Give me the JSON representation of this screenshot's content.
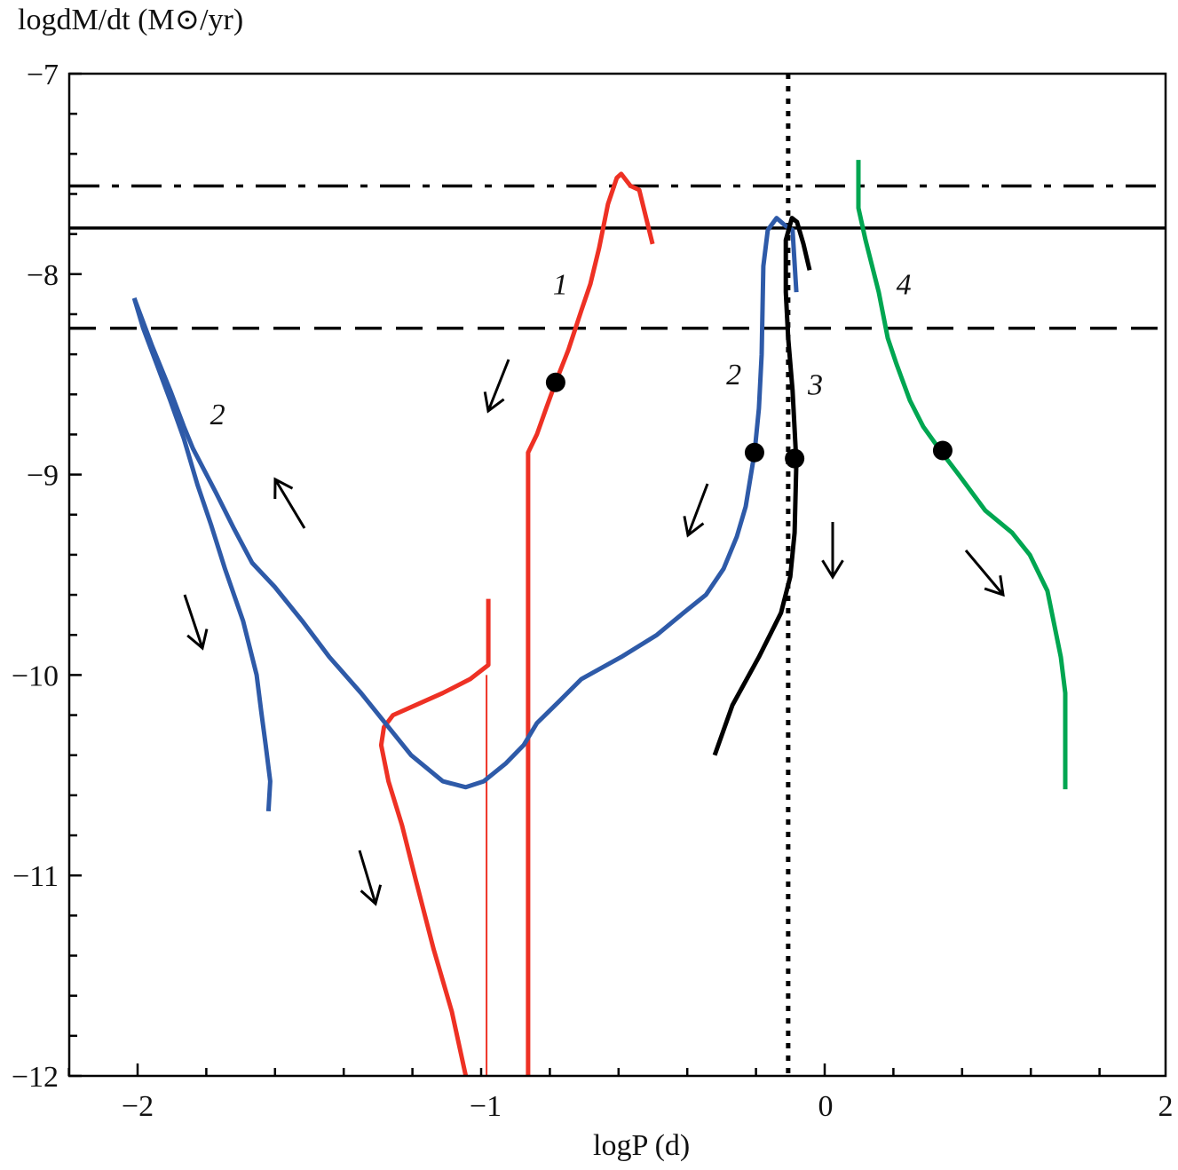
{
  "chart_data": {
    "type": "line",
    "title": "",
    "xlabel": "logP (d)",
    "ylabel": "logdM/dt (M⊙/yr)",
    "xlim": [
      -2.2,
      2
    ],
    "ylim": [
      -12,
      -7
    ],
    "x_axis_breakpoints": [
      -2.2,
      -2,
      -1,
      0,
      2
    ],
    "xticks": [
      {
        "value": -2,
        "label": "−2"
      },
      {
        "value": -1,
        "label": "−1"
      },
      {
        "value": 0,
        "label": "0"
      },
      {
        "value": 2,
        "label": "2"
      }
    ],
    "yticks": [
      {
        "value": -7,
        "label": "−7"
      },
      {
        "value": -8,
        "label": "−8"
      },
      {
        "value": -9,
        "label": "−9"
      },
      {
        "value": -10,
        "label": "−10"
      },
      {
        "value": -11,
        "label": "−11"
      },
      {
        "value": -12,
        "label": "−12"
      }
    ],
    "grid": false,
    "reference_lines": [
      {
        "orientation": "horizontal",
        "value": -7.56,
        "style": "dash-dot",
        "color": "#000000"
      },
      {
        "orientation": "horizontal",
        "value": -7.77,
        "style": "solid",
        "color": "#000000"
      },
      {
        "orientation": "horizontal",
        "value": -8.27,
        "style": "dashed",
        "color": "#000000"
      },
      {
        "orientation": "vertical",
        "value": -0.11,
        "style": "dotted",
        "color": "#000000"
      }
    ],
    "series": [
      {
        "label": "1",
        "color": "#ee3124",
        "segments": [
          [
            [
              -0.875,
              -12
            ],
            [
              -0.875,
              -8.89
            ],
            [
              -0.849,
              -8.8
            ],
            [
              -0.822,
              -8.67
            ],
            [
              -0.794,
              -8.54
            ],
            [
              -0.757,
              -8.38
            ],
            [
              -0.718,
              -8.18
            ],
            [
              -0.692,
              -8.05
            ],
            [
              -0.666,
              -7.87
            ],
            [
              -0.64,
              -7.65
            ],
            [
              -0.614,
              -7.52
            ],
            [
              -0.601,
              -7.5
            ],
            [
              -0.574,
              -7.56
            ],
            [
              -0.548,
              -7.58
            ],
            [
              -0.522,
              -7.76
            ],
            [
              -0.509,
              -7.85
            ]
          ],
          [
            [
              -0.992,
              -9.62
            ],
            [
              -0.992,
              -9.95
            ],
            [
              -1.044,
              -10.02
            ],
            [
              -1.123,
              -10.09
            ],
            [
              -1.201,
              -10.15
            ],
            [
              -1.266,
              -10.2
            ],
            [
              -1.292,
              -10.26
            ],
            [
              -1.3,
              -10.35
            ],
            [
              -1.279,
              -10.53
            ],
            [
              -1.24,
              -10.75
            ],
            [
              -1.201,
              -11.02
            ],
            [
              -1.149,
              -11.37
            ],
            [
              -1.097,
              -11.68
            ],
            [
              -1.057,
              -12.0
            ]
          ],
          [
            [
              -0.997,
              -12
            ],
            [
              -0.997,
              -10.0
            ]
          ]
        ],
        "marker": [
          -0.794,
          -8.54
        ],
        "label_at": [
          -0.78,
          -8.1
        ]
      },
      {
        "label": "2",
        "color": "#2e5aa8",
        "segments": [
          [
            [
              -2.01,
              -8.12
            ],
            [
              -1.984,
              -8.27
            ],
            [
              -1.945,
              -8.45
            ],
            [
              -1.906,
              -8.63
            ],
            [
              -1.867,
              -8.82
            ],
            [
              -1.828,
              -9.05
            ],
            [
              -1.789,
              -9.25
            ],
            [
              -1.749,
              -9.47
            ],
            [
              -1.697,
              -9.73
            ],
            [
              -1.658,
              -10.0
            ],
            [
              -1.645,
              -10.18
            ],
            [
              -1.632,
              -10.35
            ],
            [
              -1.619,
              -10.53
            ],
            [
              -1.624,
              -10.68
            ]
          ],
          [
            [
              -2.01,
              -8.12
            ],
            [
              -1.958,
              -8.36
            ],
            [
              -1.906,
              -8.58
            ],
            [
              -1.867,
              -8.76
            ],
            [
              -1.841,
              -8.87
            ],
            [
              -1.775,
              -9.09
            ],
            [
              -1.723,
              -9.27
            ],
            [
              -1.671,
              -9.44
            ],
            [
              -1.606,
              -9.56
            ],
            [
              -1.527,
              -9.73
            ],
            [
              -1.449,
              -9.91
            ],
            [
              -1.358,
              -10.09
            ],
            [
              -1.279,
              -10.26
            ],
            [
              -1.214,
              -10.4
            ],
            [
              -1.123,
              -10.53
            ],
            [
              -1.057,
              -10.56
            ],
            [
              -1.005,
              -10.53
            ],
            [
              -0.94,
              -10.44
            ],
            [
              -0.888,
              -10.35
            ],
            [
              -0.849,
              -10.24
            ],
            [
              -0.783,
              -10.13
            ],
            [
              -0.718,
              -10.02
            ],
            [
              -0.601,
              -9.91
            ],
            [
              -0.496,
              -9.8
            ],
            [
              -0.418,
              -9.69
            ],
            [
              -0.352,
              -9.6
            ],
            [
              -0.3,
              -9.47
            ],
            [
              -0.261,
              -9.31
            ],
            [
              -0.235,
              -9.16
            ],
            [
              -0.209,
              -8.89
            ],
            [
              -0.196,
              -8.67
            ],
            [
              -0.188,
              -8.4
            ],
            [
              -0.183,
              -7.96
            ],
            [
              -0.17,
              -7.78
            ],
            [
              -0.144,
              -7.72
            ],
            [
              -0.117,
              -7.76
            ],
            [
              -0.097,
              -7.78
            ],
            [
              -0.086,
              -8.09
            ]
          ]
        ],
        "marker": [
          -0.209,
          -8.89
        ],
        "label_at": [
          -1.77,
          -8.75
        ],
        "label2_at": [
          -0.27,
          -8.55
        ]
      },
      {
        "label": "3",
        "color": "#000000",
        "segments": [
          [
            [
              -0.326,
              -10.4
            ],
            [
              -0.274,
              -10.15
            ],
            [
              -0.196,
              -9.91
            ],
            [
              -0.131,
              -9.69
            ],
            [
              -0.104,
              -9.51
            ],
            [
              -0.091,
              -9.29
            ],
            [
              -0.086,
              -8.94
            ],
            [
              -0.097,
              -8.58
            ],
            [
              -0.11,
              -8.32
            ],
            [
              -0.117,
              -8.09
            ],
            [
              -0.117,
              -7.83
            ],
            [
              -0.099,
              -7.72
            ],
            [
              -0.084,
              -7.74
            ],
            [
              -0.065,
              -7.85
            ],
            [
              -0.047,
              -7.98
            ]
          ]
        ],
        "marker": [
          -0.091,
          -8.92
        ],
        "label_at": [
          -0.03,
          -8.6
        ]
      },
      {
        "label": "4",
        "color": "#00a651",
        "segments": [
          [
            [
              0.193,
              -7.43
            ],
            [
              0.193,
              -7.67
            ],
            [
              0.235,
              -7.83
            ],
            [
              0.313,
              -8.09
            ],
            [
              0.366,
              -8.32
            ],
            [
              0.418,
              -8.45
            ],
            [
              0.496,
              -8.63
            ],
            [
              0.574,
              -8.76
            ],
            [
              0.684,
              -8.89
            ],
            [
              0.783,
              -9.0
            ],
            [
              0.94,
              -9.18
            ],
            [
              1.097,
              -9.29
            ],
            [
              1.201,
              -9.4
            ],
            [
              1.305,
              -9.58
            ],
            [
              1.384,
              -9.91
            ],
            [
              1.41,
              -10.09
            ],
            [
              1.41,
              -10.57
            ]
          ]
        ],
        "marker": [
          0.689,
          -8.88
        ],
        "label_at": [
          0.46,
          -8.1
        ]
      }
    ]
  }
}
